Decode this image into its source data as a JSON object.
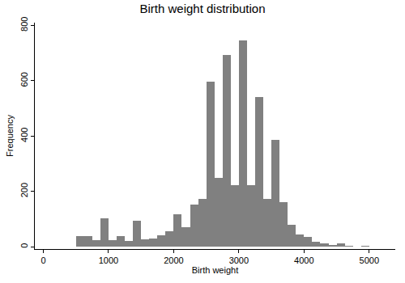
{
  "chart_data": {
    "type": "histogram",
    "title": "Birth weight distribution",
    "x_label": "Birth weight",
    "y_label": "Frequency",
    "bins": [
      500,
      625,
      750,
      875,
      1000,
      1125,
      1250,
      1375,
      1500,
      1625,
      1750,
      1875,
      2000,
      2125,
      2250,
      2375,
      2500,
      2625,
      2750,
      2875,
      3000,
      3125,
      3250,
      3375,
      3500,
      3625,
      3750,
      3875,
      4000,
      4125,
      4250,
      4375,
      4500,
      4625,
      4750,
      4875,
      5000,
      5125,
      5250
    ],
    "values": [
      38,
      40,
      25,
      102,
      25,
      38,
      22,
      95,
      28,
      30,
      42,
      55,
      118,
      70,
      152,
      172,
      596,
      248,
      694,
      222,
      746,
      222,
      540,
      172,
      386,
      160,
      80,
      45,
      37,
      18,
      12,
      6,
      12,
      3,
      2,
      3,
      2,
      1
    ],
    "color": "#808080",
    "xlim": [
      -130,
      5400
    ],
    "xticks": [
      0,
      1000,
      2000,
      3000,
      4000,
      5000
    ],
    "ylim": [
      -8,
      810
    ],
    "yticks": [
      0,
      200,
      400,
      600,
      800
    ],
    "grid": false
  }
}
